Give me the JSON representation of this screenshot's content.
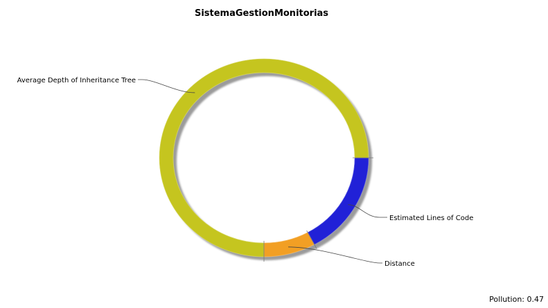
{
  "chart_data": {
    "type": "pie",
    "style": "ring",
    "title": "SistemaGestionMonitorias",
    "slices": [
      {
        "label": "Estimated Lines of Code",
        "value": 0.17,
        "color": "#2121d7"
      },
      {
        "label": "Distance",
        "value": 0.08,
        "color": "#f29f24"
      },
      {
        "label": "Average Depth of Inheritance Tree",
        "value": 0.75,
        "color": "#c5c51f"
      }
    ],
    "legend": "none (callout labels)"
  },
  "footer": {
    "pollution_label": "Pollution: 0.47"
  }
}
